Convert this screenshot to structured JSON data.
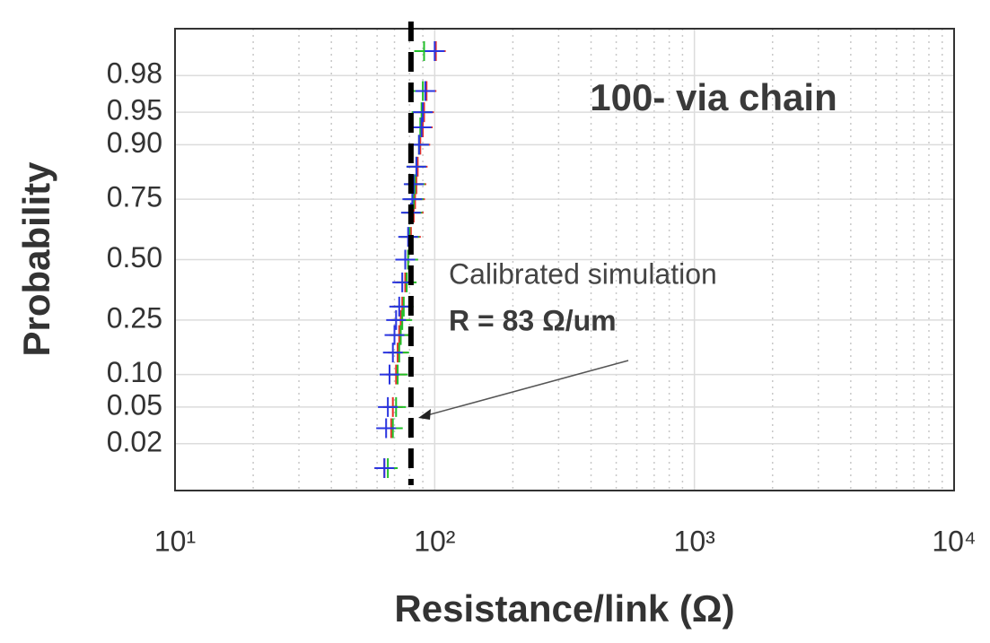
{
  "chart_data": {
    "type": "scatter",
    "xlabel": "Resistance/link (Ω)",
    "ylabel": "Probability",
    "xscale": "log",
    "yscale": "probability",
    "xlim": [
      10,
      10000
    ],
    "xticks": [
      {
        "value": 10,
        "label": "10¹"
      },
      {
        "value": 100,
        "label": "10²"
      },
      {
        "value": 1000,
        "label": "10³"
      },
      {
        "value": 10000,
        "label": "10⁴"
      }
    ],
    "x_minor_grid": [
      20,
      30,
      40,
      50,
      60,
      70,
      80,
      90,
      200,
      300,
      400,
      500,
      600,
      700,
      800,
      900,
      2000,
      3000,
      4000,
      5000,
      6000,
      7000,
      8000,
      9000
    ],
    "ylim": [
      0.005,
      0.995
    ],
    "yticks": [
      0.02,
      0.05,
      {
        "value": 0.1,
        "label": "0.10"
      },
      0.25,
      {
        "value": 0.5,
        "label": "0.50"
      },
      0.75,
      {
        "value": 0.9,
        "label": "0.90"
      },
      0.95,
      0.98
    ],
    "grid": true,
    "marker": "+",
    "series": [
      {
        "color": "#e8302a",
        "x": [
          64,
          68,
          69,
          71,
          72,
          73,
          74,
          75,
          77,
          79,
          81,
          83,
          84,
          85,
          86,
          88,
          90,
          91,
          93,
          101
        ],
        "values": [
          0.01,
          0.03,
          0.05,
          0.1,
          0.15,
          0.2,
          0.25,
          0.3,
          0.4,
          0.5,
          0.6,
          0.7,
          0.75,
          0.8,
          0.85,
          0.9,
          0.93,
          0.95,
          0.97,
          0.99
        ]
      },
      {
        "color": "#22c02a",
        "x": [
          66,
          69,
          71,
          72,
          73,
          74,
          75,
          76,
          78,
          79,
          80,
          82,
          83,
          84,
          85,
          87,
          88,
          89,
          90,
          91
        ],
        "values": [
          0.01,
          0.03,
          0.05,
          0.1,
          0.15,
          0.2,
          0.25,
          0.3,
          0.4,
          0.5,
          0.6,
          0.7,
          0.75,
          0.8,
          0.85,
          0.9,
          0.93,
          0.95,
          0.97,
          0.99
        ]
      },
      {
        "color": "#2a35e0",
        "x": [
          64,
          65,
          66,
          67,
          69,
          70,
          71,
          73,
          75,
          77,
          79,
          81,
          82,
          83,
          85,
          87,
          89,
          90,
          92,
          100
        ],
        "values": [
          0.01,
          0.03,
          0.05,
          0.1,
          0.15,
          0.2,
          0.25,
          0.3,
          0.4,
          0.5,
          0.6,
          0.7,
          0.75,
          0.8,
          0.85,
          0.9,
          0.93,
          0.95,
          0.97,
          0.99
        ]
      }
    ],
    "reference_line": {
      "x": 81,
      "color": "#000000"
    },
    "annotations": {
      "label": "100- via chain",
      "sim_label": "Calibrated simulation",
      "sim_value": "R = 83 Ω/um"
    }
  }
}
